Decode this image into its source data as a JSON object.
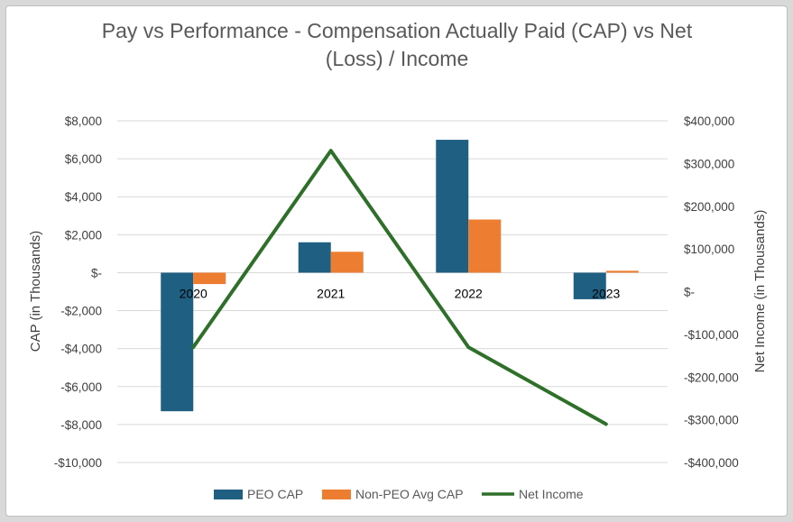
{
  "chart_data": {
    "type": "bar",
    "title": "Pay vs Performance - Compensation Actually Paid (CAP) vs Net (Loss) / Income",
    "title_lines": [
      "Pay vs Performance - Compensation Actually Paid (CAP) vs Net",
      "(Loss) / Income"
    ],
    "categories": [
      "2020",
      "2021",
      "2022",
      "2023"
    ],
    "ylabel": "CAP (in Thousands)",
    "y2label": "Net Income (in Thousands)",
    "ylim": [
      -10000,
      8000
    ],
    "y2lim": [
      -400000,
      400000
    ],
    "yticks": [
      {
        "value": 8000,
        "label": "$8,000"
      },
      {
        "value": 6000,
        "label": "$6,000"
      },
      {
        "value": 4000,
        "label": "$4,000"
      },
      {
        "value": 2000,
        "label": "$2,000"
      },
      {
        "value": 0,
        "label": "$-"
      },
      {
        "value": -2000,
        "label": "-$2,000"
      },
      {
        "value": -4000,
        "label": "-$4,000"
      },
      {
        "value": -6000,
        "label": "-$6,000"
      },
      {
        "value": -8000,
        "label": "-$8,000"
      },
      {
        "value": -10000,
        "label": "-$10,000"
      }
    ],
    "y2ticks": [
      {
        "value": 400000,
        "label": "$400,000"
      },
      {
        "value": 300000,
        "label": "$300,000"
      },
      {
        "value": 200000,
        "label": "$200,000"
      },
      {
        "value": 100000,
        "label": "$100,000"
      },
      {
        "value": 0,
        "label": "$-"
      },
      {
        "value": -100000,
        "label": "-$100,000"
      },
      {
        "value": -200000,
        "label": "-$200,000"
      },
      {
        "value": -300000,
        "label": "-$300,000"
      },
      {
        "value": -400000,
        "label": "-$400,000"
      }
    ],
    "series": [
      {
        "name": "PEO CAP",
        "type": "bar",
        "axis": "left",
        "color": "#1f5f82",
        "values": [
          -7300,
          1600,
          7000,
          -1400
        ]
      },
      {
        "name": "Non-PEO Avg CAP",
        "type": "bar",
        "axis": "left",
        "color": "#ed7d31",
        "values": [
          -600,
          1100,
          2800,
          100
        ]
      },
      {
        "name": "Net Income",
        "type": "line",
        "axis": "right",
        "color": "#2e6f2a",
        "values": [
          -130000,
          330000,
          -130000,
          -310000
        ]
      }
    ],
    "grid": true,
    "legend": "bottom"
  }
}
